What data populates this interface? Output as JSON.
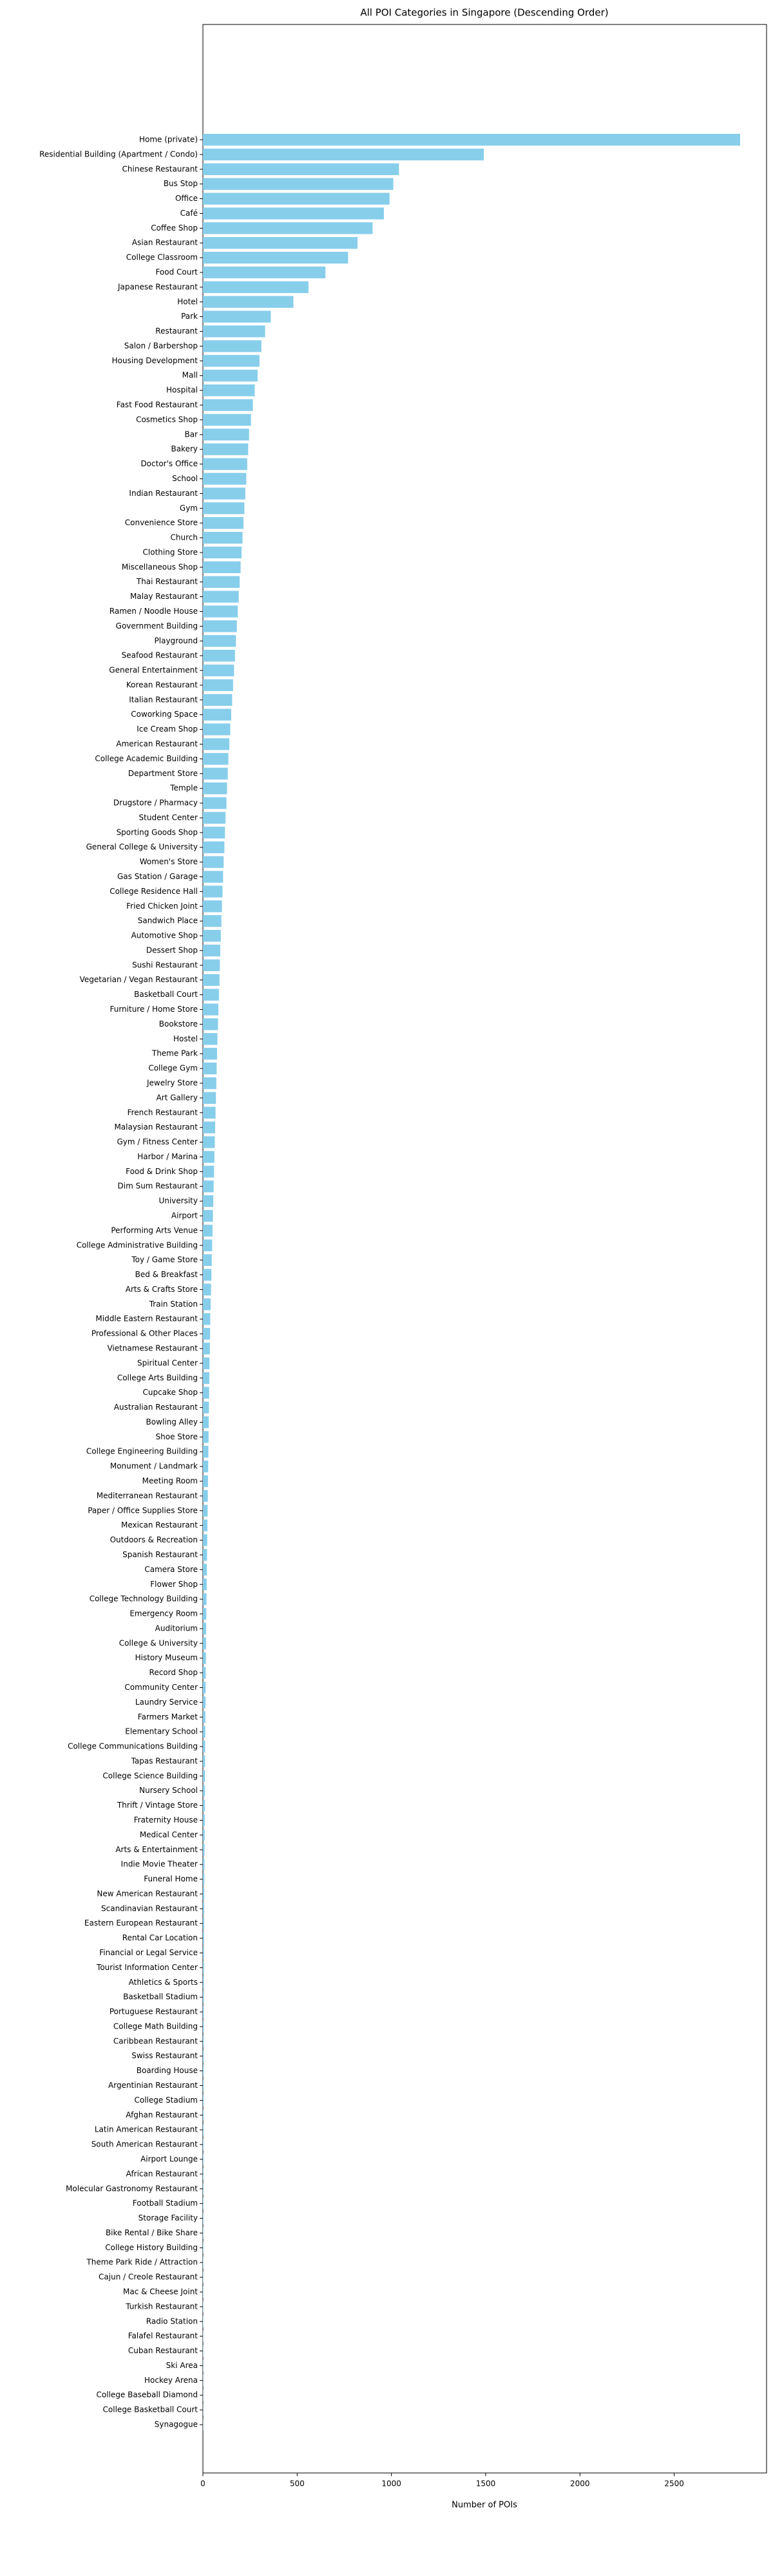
{
  "chart_data": {
    "type": "barh",
    "title": "All POI Categories in Singapore (Descending Order)",
    "xlabel": "Number of POIs",
    "color": "#87ceeb",
    "xlim": [
      0,
      2990
    ],
    "xticks": [
      0,
      500,
      1000,
      1500,
      2000,
      2500
    ],
    "categories": [
      "Home (private)",
      "Residential Building (Apartment / Condo)",
      "Chinese Restaurant",
      "Bus Stop",
      "Office",
      "Café",
      "Coffee Shop",
      "Asian Restaurant",
      "College Classroom",
      "Food Court",
      "Japanese Restaurant",
      "Hotel",
      "Park",
      "Restaurant",
      "Salon / Barbershop",
      "Housing Development",
      "Mall",
      "Hospital",
      "Fast Food Restaurant",
      "Cosmetics Shop",
      "Bar",
      "Bakery",
      "Doctor's Office",
      "School",
      "Indian Restaurant",
      "Gym",
      "Convenience Store",
      "Church",
      "Clothing Store",
      "Miscellaneous Shop",
      "Thai Restaurant",
      "Malay Restaurant",
      "Ramen / Noodle House",
      "Government Building",
      "Playground",
      "Seafood Restaurant",
      "General Entertainment",
      "Korean Restaurant",
      "Italian Restaurant",
      "Coworking Space",
      "Ice Cream Shop",
      "American Restaurant",
      "College Academic Building",
      "Department Store",
      "Temple",
      "Drugstore / Pharmacy",
      "Student Center",
      "Sporting Goods Shop",
      "General College & University",
      "Women's Store",
      "Gas Station / Garage",
      "College Residence Hall",
      "Fried Chicken Joint",
      "Sandwich Place",
      "Automotive Shop",
      "Dessert Shop",
      "Sushi Restaurant",
      "Vegetarian / Vegan Restaurant",
      "Basketball Court",
      "Furniture / Home Store",
      "Bookstore",
      "Hostel",
      "Theme Park",
      "College Gym",
      "Jewelry Store",
      "Art Gallery",
      "French Restaurant",
      "Malaysian Restaurant",
      "Gym / Fitness Center",
      "Harbor / Marina",
      "Food & Drink Shop",
      "Dim Sum Restaurant",
      "University",
      "Airport",
      "Performing Arts Venue",
      "College Administrative Building",
      "Toy / Game Store",
      "Bed & Breakfast",
      "Arts & Crafts Store",
      "Train Station",
      "Middle Eastern Restaurant",
      "Professional & Other Places",
      "Vietnamese Restaurant",
      "Spiritual Center",
      "College Arts Building",
      "Cupcake Shop",
      "Australian Restaurant",
      "Bowling Alley",
      "Shoe Store",
      "College Engineering Building",
      "Monument / Landmark",
      "Meeting Room",
      "Mediterranean Restaurant",
      "Paper / Office Supplies Store",
      "Mexican Restaurant",
      "Outdoors & Recreation",
      "Spanish Restaurant",
      "Camera Store",
      "Flower Shop",
      "College Technology Building",
      "Emergency Room",
      "Auditorium",
      "College & University",
      "History Museum",
      "Record Shop",
      "Community Center",
      "Laundry Service",
      "Farmers Market",
      "Elementary School",
      "College Communications Building",
      "Tapas Restaurant",
      "College Science Building",
      "Nursery School",
      "Thrift / Vintage Store",
      "Fraternity House",
      "Medical Center",
      "Arts & Entertainment",
      "Indie Movie Theater",
      "Funeral Home",
      "New American Restaurant",
      "Scandinavian Restaurant",
      "Eastern European Restaurant",
      "Rental Car Location",
      "Financial or Legal Service",
      "Tourist Information Center",
      "Athletics & Sports",
      "Basketball Stadium",
      "Portuguese Restaurant",
      "College Math Building",
      "Caribbean Restaurant",
      "Swiss Restaurant",
      "Boarding House",
      "Argentinian Restaurant",
      "College Stadium",
      "Afghan Restaurant",
      "Latin American Restaurant",
      "South American Restaurant",
      "Airport Lounge",
      "African Restaurant",
      "Molecular Gastronomy Restaurant",
      "Football Stadium",
      "Storage Facility",
      "Bike Rental / Bike Share",
      "College History Building",
      "Theme Park Ride / Attraction",
      "Cajun / Creole Restaurant",
      "Mac & Cheese Joint",
      "Turkish Restaurant",
      "Radio Station",
      "Falafel Restaurant",
      "Cuban Restaurant",
      "Ski Area",
      "Hockey Arena",
      "College Baseball Diamond",
      "College Basketball Court",
      "Synagogue"
    ],
    "values": [
      2850,
      1490,
      1040,
      1010,
      990,
      960,
      900,
      820,
      770,
      650,
      560,
      480,
      360,
      330,
      310,
      300,
      290,
      275,
      265,
      255,
      245,
      240,
      235,
      230,
      225,
      220,
      215,
      210,
      205,
      200,
      195,
      190,
      185,
      180,
      175,
      170,
      165,
      160,
      155,
      150,
      145,
      140,
      135,
      132,
      128,
      125,
      120,
      117,
      114,
      110,
      107,
      104,
      101,
      98,
      95,
      92,
      90,
      88,
      85,
      82,
      80,
      77,
      75,
      73,
      71,
      69,
      67,
      65,
      63,
      61,
      59,
      57,
      55,
      53,
      51,
      49,
      47,
      45,
      43,
      41,
      39,
      38,
      37,
      35,
      34,
      33,
      32,
      31,
      30,
      29,
      28,
      27,
      26,
      25,
      24,
      23,
      22,
      21,
      20,
      19,
      18,
      17,
      16.5,
      16,
      15,
      14.5,
      14,
      13,
      12.5,
      12,
      11.5,
      11,
      10.5,
      10,
      9.5,
      9,
      8.5,
      8,
      7.5,
      7,
      6.8,
      6.5,
      6,
      5.8,
      5.5,
      5.2,
      5,
      4.8,
      4.5,
      4.3,
      4.1,
      4,
      3.8,
      3.6,
      3.4,
      3.2,
      3,
      2.9,
      2.8,
      2.7,
      2.6,
      2.5,
      2.4,
      2.3,
      2.2,
      2,
      2,
      2,
      1.8,
      1.5,
      1.5,
      1.3,
      1.2,
      1.1,
      1,
      1
    ]
  }
}
